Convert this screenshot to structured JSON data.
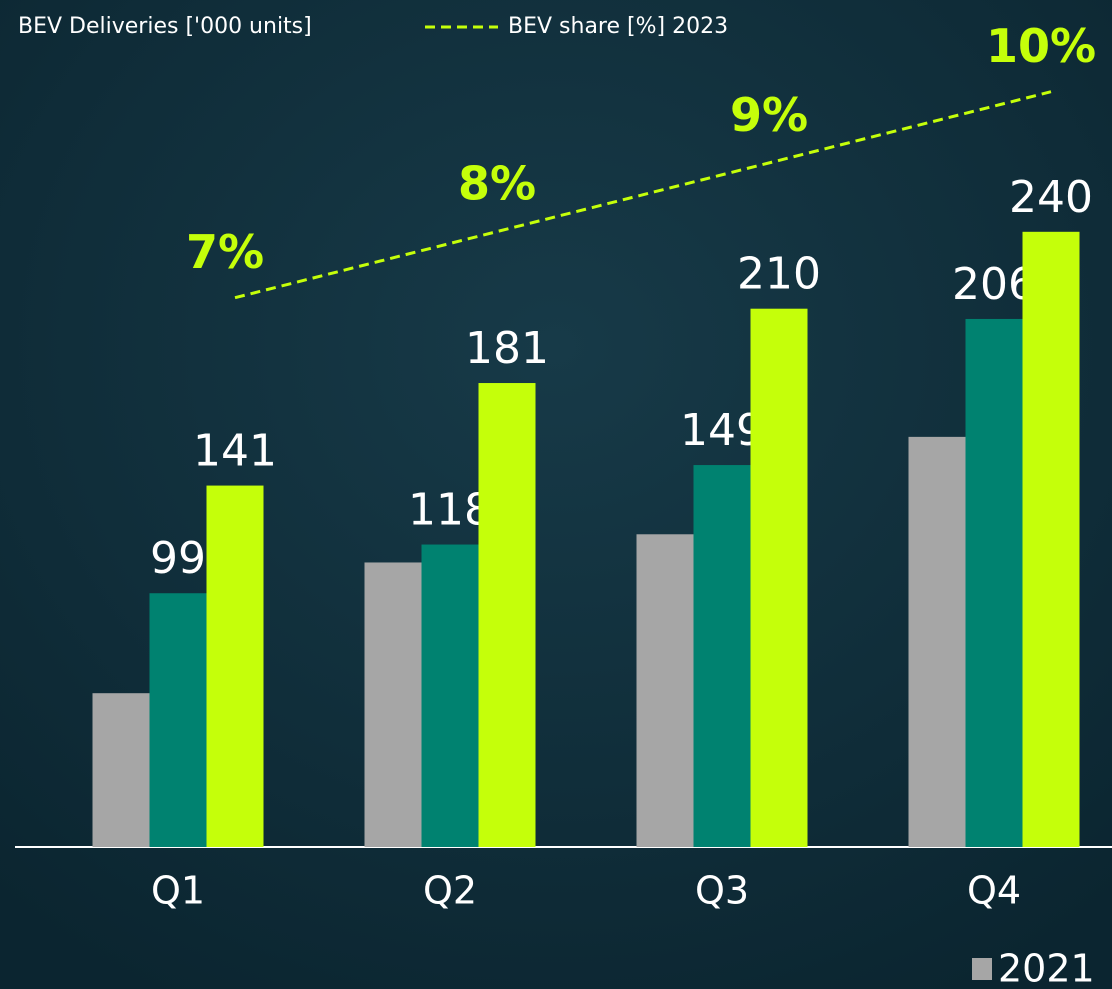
{
  "chart_data": {
    "type": "bar",
    "title": "BEV Deliveries ['000 units]",
    "categories": [
      "Q1",
      "Q2",
      "Q3",
      "Q4"
    ],
    "series": [
      {
        "name": "2021",
        "color": "#a6a6a6",
        "values": [
          60,
          111,
          122,
          160
        ]
      },
      {
        "color": "#008270",
        "values": [
          99,
          118,
          149,
          206
        ]
      },
      {
        "color": "#c5ff0a",
        "values": [
          141,
          181,
          210,
          240
        ]
      },
      {
        "name": "BEV share [%] 2023",
        "type": "line",
        "axis": "y2",
        "color": "#c5ff0a",
        "values": [
          7,
          8,
          9,
          10
        ],
        "value_labels": [
          "7%",
          "8%",
          "9%",
          "10%"
        ]
      }
    ],
    "ylim": [
      0,
      300
    ],
    "y2lim": [
      -1,
      10.2
    ]
  }
}
